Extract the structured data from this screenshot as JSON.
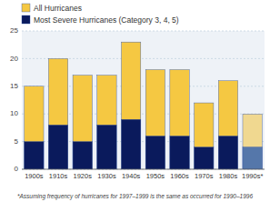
{
  "chart_data": {
    "type": "bar",
    "categories": [
      "1900s",
      "1910s",
      "1920s",
      "1930s",
      "1940s",
      "1950s",
      "1960s",
      "1970s",
      "1980s",
      "1990s*"
    ],
    "series": [
      {
        "name": "All Hurricanes",
        "color": "#F5C842",
        "colors": [
          "#F5C842",
          "#F5C842",
          "#F5C842",
          "#F5C842",
          "#F5C842",
          "#F5C842",
          "#F5C842",
          "#F5C842",
          "#F5C842",
          "#F0D890"
        ],
        "values": [
          15,
          20,
          17,
          17,
          23,
          18,
          18,
          12,
          16,
          10
        ]
      },
      {
        "name": "Most Severe Hurricanes (Category 3, 4, 5)",
        "color": "#0A1A5C",
        "colors": [
          "#0A1A5C",
          "#0A1A5C",
          "#0A1A5C",
          "#0A1A5C",
          "#0A1A5C",
          "#0A1A5C",
          "#0A1A5C",
          "#0A1A5C",
          "#0A1A5C",
          "#5577AA"
        ],
        "values": [
          5,
          8,
          5,
          8,
          9,
          6,
          6,
          4,
          6,
          4
        ]
      }
    ],
    "ylim": [
      0,
      25
    ],
    "yticks": [
      0,
      5,
      10,
      15,
      20,
      25
    ],
    "grid": true,
    "legend": "upper left",
    "annotations": [
      "*Assuming frequency of hurricanes for 1997–1999 is the same as occurred for 1990–1996"
    ]
  }
}
